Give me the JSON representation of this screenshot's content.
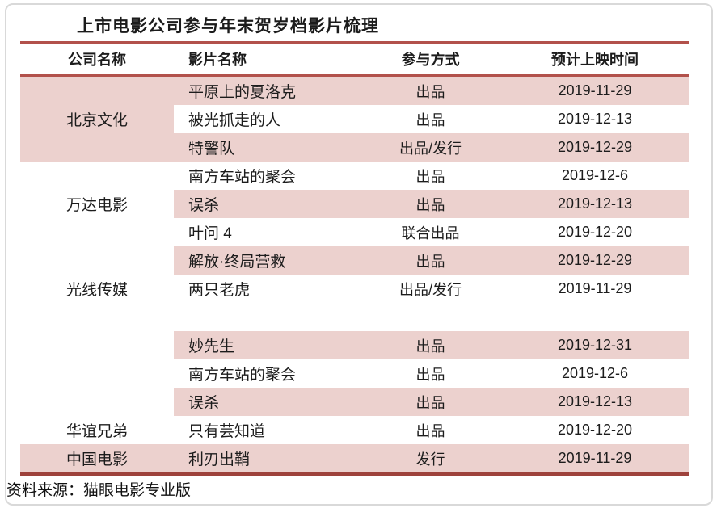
{
  "title": "上市电影公司参与年末贺岁档影片梳理",
  "source_note": "资料来源：猫眼电影专业版",
  "colors": {
    "row_highlight_pink": "#ecd1ce",
    "header_rule_red": "#b2514b",
    "bottom_rule_red": "#9e423c",
    "frame_gray": "#d9d9d9",
    "text": "#1c1c1c"
  },
  "table": {
    "headers": [
      "公司名称",
      "影片名称",
      "参与方式",
      "预计上映时间"
    ],
    "company_cells": [
      {
        "label": "北京文化"
      },
      {
        "label": "万达电影"
      },
      {
        "label": "光线传媒"
      },
      {
        "label": "华谊兄弟"
      },
      {
        "label": "中国电影"
      }
    ],
    "rows": [
      {
        "film": "平原上的夏洛克",
        "role": "出品",
        "date": "2019-11-29"
      },
      {
        "film": "被光抓走的人",
        "role": "出品",
        "date": "2019-12-13"
      },
      {
        "film": "特警队",
        "role": "出品/发行",
        "date": "2019-12-29"
      },
      {
        "film": "南方车站的聚会",
        "role": "出品",
        "date": "2019-12-6"
      },
      {
        "film": "误杀",
        "role": "出品",
        "date": "2019-12-13"
      },
      {
        "film": "叶问 4",
        "role": "联合出品",
        "date": "2019-12-20"
      },
      {
        "film": "解放·终局营救",
        "role": "出品",
        "date": "2019-12-29"
      },
      {
        "film": "两只老虎",
        "role": "出品/发行",
        "date": "2019-11-29"
      },
      {
        "film": "",
        "role": "",
        "date": ""
      },
      {
        "film": "妙先生",
        "role": "出品",
        "date": "2019-12-31"
      },
      {
        "film": "南方车站的聚会",
        "role": "出品",
        "date": "2019-12-6"
      },
      {
        "film": "误杀",
        "role": "出品",
        "date": "2019-12-13"
      },
      {
        "film": "只有芸知道",
        "role": "出品",
        "date": "2019-12-20"
      },
      {
        "film": "利刃出鞘",
        "role": "发行",
        "date": "2019-11-29"
      }
    ]
  },
  "chart_data": {
    "type": "table",
    "title": "上市电影公司参与年末贺岁档影片梳理",
    "columns": [
      "公司名称",
      "影片名称",
      "参与方式",
      "预计上映时间"
    ],
    "rows": [
      [
        "北京文化",
        "平原上的夏洛克",
        "出品",
        "2019-11-29"
      ],
      [
        "北京文化",
        "被光抓走的人",
        "出品",
        "2019-12-13"
      ],
      [
        "北京文化",
        "特警队",
        "出品/发行",
        "2019-12-29"
      ],
      [
        "万达电影",
        "南方车站的聚会",
        "出品",
        "2019-12-6"
      ],
      [
        "万达电影",
        "误杀",
        "出品",
        "2019-12-13"
      ],
      [
        "万达电影",
        "叶问 4",
        "联合出品",
        "2019-12-20"
      ],
      [
        "光线传媒",
        "解放·终局营救",
        "出品",
        "2019-12-29"
      ],
      [
        "光线传媒",
        "两只老虎",
        "出品/发行",
        "2019-11-29"
      ],
      [
        "",
        "妙先生",
        "出品",
        "2019-12-31"
      ],
      [
        "",
        "南方车站的聚会",
        "出品",
        "2019-12-6"
      ],
      [
        "",
        "误杀",
        "出品",
        "2019-12-13"
      ],
      [
        "华谊兄弟",
        "只有芸知道",
        "出品",
        "2019-12-20"
      ],
      [
        "中国电影",
        "利刃出鞘",
        "发行",
        "2019-11-29"
      ]
    ],
    "annotations": [
      "资料来源：猫眼电影专业版"
    ]
  }
}
